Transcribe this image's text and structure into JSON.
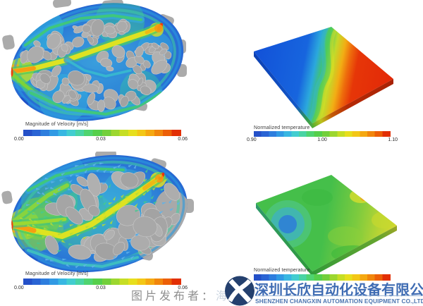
{
  "colorbars": {
    "velocity": {
      "title": "Magnitude of Velocity [m/s]",
      "ticks": [
        "0.00",
        "0.03",
        "0.06"
      ],
      "min": "0.00",
      "mid": "0.03",
      "max": "0.06"
    },
    "temperature": {
      "title": "Normalized temperature",
      "ticks": [
        "0.90",
        "1.00",
        "1.10"
      ],
      "min": "0.90",
      "mid": "1.00",
      "max": "1.10"
    }
  },
  "watermark": {
    "publisher_label": "图片发布者：",
    "obscured_text": "海"
  },
  "logo": {
    "company_cn": "深圳长欣自动化设备有限公司",
    "company_en": "SHENZHEN CHANGXIN AUTOMATION EQUIPMENT CO.,LTD",
    "icon": "cx-monogram-icon",
    "colors": {
      "navy": "#24406e",
      "blue": "#3f6cb3"
    }
  },
  "scale_colors": {
    "low": "#2450c8",
    "high": "#e22f05"
  }
}
